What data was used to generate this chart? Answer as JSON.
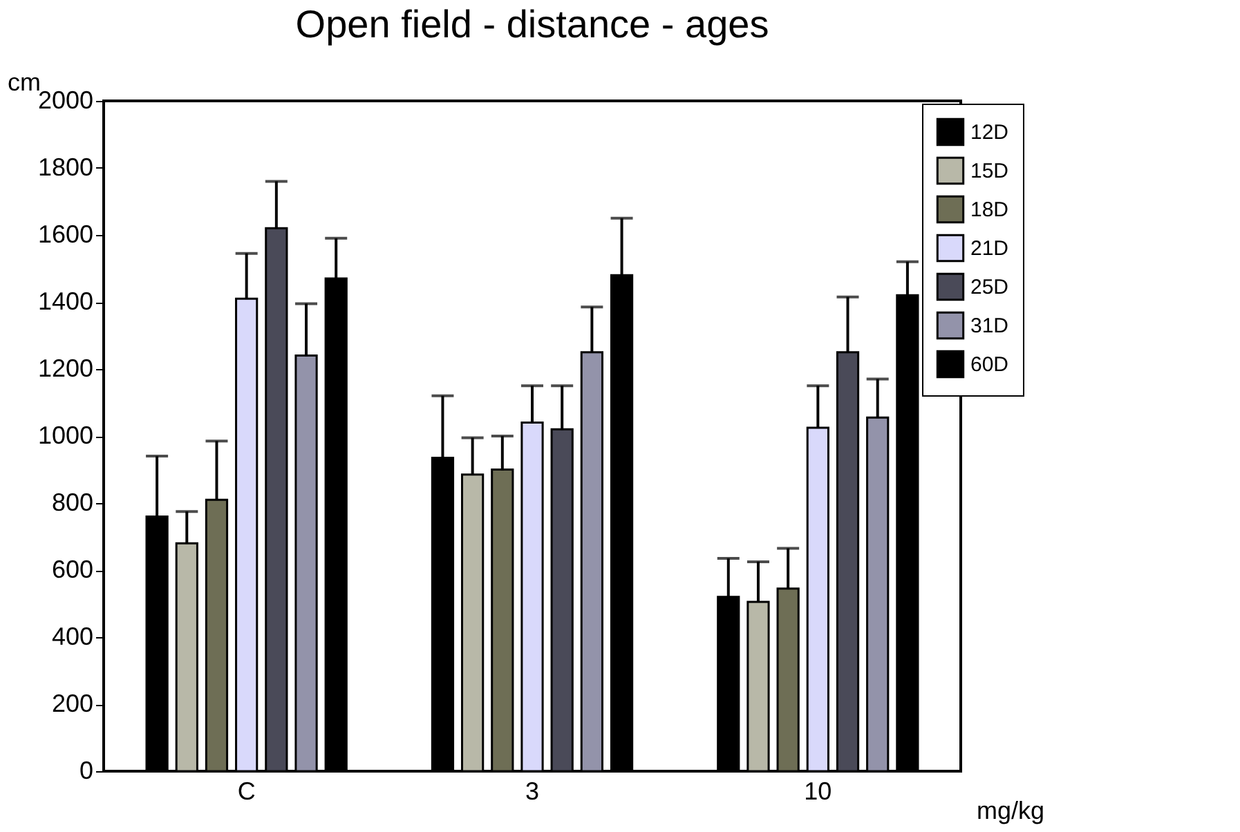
{
  "chart_data": {
    "type": "bar",
    "title": "Open field - distance - ages",
    "xlabel": "mg/kg",
    "ylabel": "cm",
    "categories": [
      "C",
      "3",
      "10"
    ],
    "series": [
      {
        "name": "12D",
        "color": "#000000",
        "values": [
          760,
          935,
          520
        ],
        "errors": [
          [
            760,
            940
          ],
          [
            935,
            1120
          ],
          [
            520,
            635
          ]
        ]
      },
      {
        "name": "15D",
        "color": "#b8b8a8",
        "values": [
          680,
          885,
          505
        ],
        "errors": [
          [
            680,
            775
          ],
          [
            885,
            995
          ],
          [
            505,
            625
          ]
        ]
      },
      {
        "name": "18D",
        "color": "#6e6e55",
        "values": [
          810,
          900,
          545
        ],
        "errors": [
          [
            810,
            985
          ],
          [
            900,
            1000
          ],
          [
            545,
            665
          ]
        ]
      },
      {
        "name": "21D",
        "color": "#d9d9fb",
        "values": [
          1410,
          1040,
          1025
        ],
        "errors": [
          [
            1410,
            1545
          ],
          [
            1040,
            1150
          ],
          [
            1025,
            1150
          ]
        ]
      },
      {
        "name": "25D",
        "color": "#4a4a58",
        "values": [
          1620,
          1020,
          1250
        ],
        "errors": [
          [
            1620,
            1760
          ],
          [
            1020,
            1150
          ],
          [
            1250,
            1415
          ]
        ]
      },
      {
        "name": "31D",
        "color": "#9393aa",
        "values": [
          1240,
          1250,
          1055
        ],
        "errors": [
          [
            1240,
            1395
          ],
          [
            1250,
            1385
          ],
          [
            1055,
            1170
          ]
        ]
      },
      {
        "name": "60D",
        "color": "#000000",
        "values": [
          1470,
          1480,
          1420
        ],
        "errors": [
          [
            1470,
            1590
          ],
          [
            1480,
            1650
          ],
          [
            1420,
            1520
          ]
        ]
      }
    ],
    "ylim": [
      0,
      2000
    ],
    "yticks": [
      0,
      200,
      400,
      600,
      800,
      1000,
      1200,
      1400,
      1600,
      1800,
      2000
    ],
    "grid": false,
    "legend": "top right"
  }
}
